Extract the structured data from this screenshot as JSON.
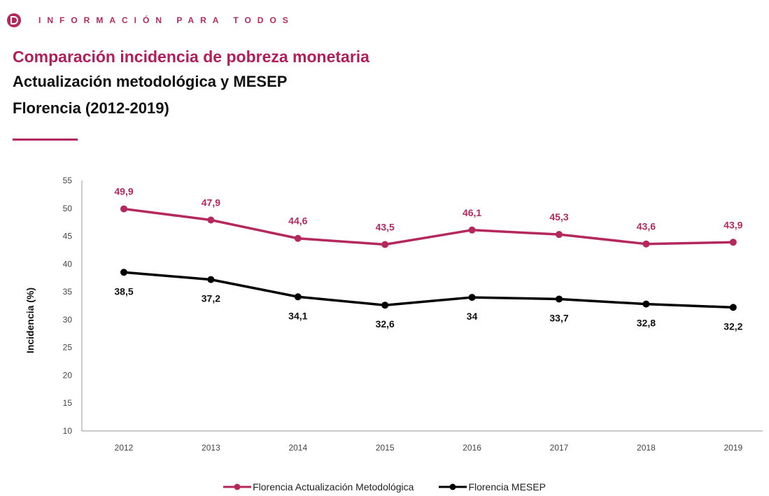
{
  "header": {
    "brand_text": "INFORMACIÓN PARA TODOS",
    "logo_icon": "dane-logo-icon",
    "accent_color": "#b5285e"
  },
  "title": "Comparación incidencia de pobreza monetaria",
  "subtitle": "Actualización metodológica y MESEP",
  "subtitle2": "Florencia (2012-2019)",
  "chart_data": {
    "type": "line",
    "x": [
      "2012",
      "2013",
      "2014",
      "2015",
      "2016",
      "2017",
      "2018",
      "2019"
    ],
    "series": [
      {
        "name": "Florencia Actualización Metodológica",
        "values": [
          49.9,
          47.9,
          44.6,
          43.5,
          46.1,
          45.3,
          43.6,
          43.9
        ],
        "labels": [
          "49,9",
          "47,9",
          "44,6",
          "43,5",
          "46,1",
          "45,3",
          "43,6",
          "43,9"
        ],
        "color": "#b5285e"
      },
      {
        "name": "Florencia MESEP",
        "values": [
          38.5,
          37.2,
          34.1,
          32.6,
          34,
          33.7,
          32.8,
          32.2
        ],
        "labels": [
          "38,5",
          "37,2",
          "34,1",
          "32,6",
          "34",
          "33,7",
          "32,8",
          "32,2"
        ],
        "color": "#000000"
      }
    ],
    "ylabel": "Incidencia (%)",
    "xlabel": "",
    "ylim": [
      10,
      55
    ],
    "yticks": [
      10,
      15,
      20,
      25,
      30,
      35,
      40,
      45,
      50,
      55
    ],
    "grid": false,
    "legend_position": "bottom"
  }
}
